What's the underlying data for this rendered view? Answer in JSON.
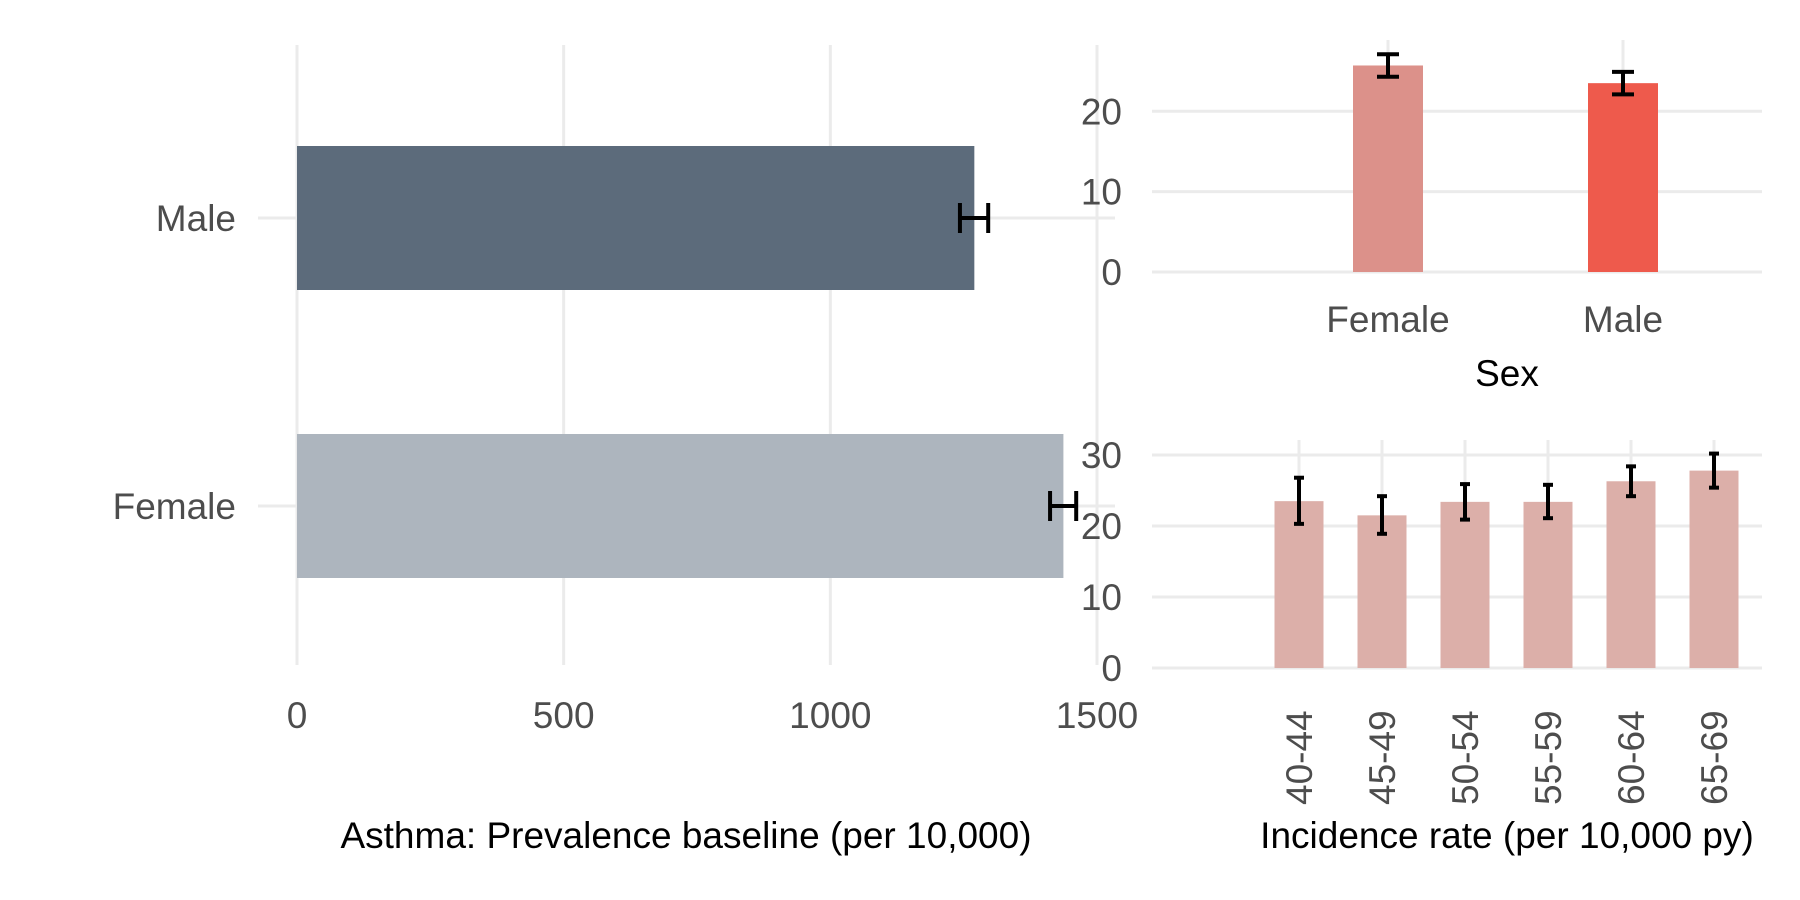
{
  "chart_data": [
    {
      "type": "bar",
      "orientation": "horizontal",
      "categories": [
        "Female",
        "Male"
      ],
      "values": [
        1437,
        1270
      ],
      "error_low": [
        1412,
        1243
      ],
      "error_high": [
        1461,
        1296
      ],
      "colors": [
        "#adb5be",
        "#5c6b7b"
      ],
      "xlabel": "Asthma: Prevalence baseline (per 10,000)",
      "xlim": [
        0,
        1500
      ],
      "x_ticks": [
        "0",
        "500",
        "1000",
        "1500"
      ],
      "x_tick_values": [
        0,
        500,
        1000,
        1500
      ],
      "grid": true
    },
    {
      "type": "bar",
      "categories": [
        "Female",
        "Male"
      ],
      "values": [
        25.7,
        23.5
      ],
      "error_low": [
        24.3,
        22.1
      ],
      "error_high": [
        27.1,
        24.9
      ],
      "colors": [
        "#dc918a",
        "#ee5a4c"
      ],
      "xlabel": "Sex",
      "ylim": [
        0,
        28
      ],
      "y_ticks": [
        "0",
        "10",
        "20"
      ],
      "y_tick_values": [
        0,
        10,
        20
      ],
      "grid": true
    },
    {
      "type": "bar",
      "categories": [
        "40-44",
        "45-49",
        "50-54",
        "55-59",
        "60-64",
        "65-69"
      ],
      "values": [
        23.5,
        21.5,
        23.4,
        23.4,
        26.3,
        27.8
      ],
      "error_low": [
        20.3,
        18.9,
        20.9,
        21.1,
        24.2,
        25.4
      ],
      "error_high": [
        26.8,
        24.2,
        25.9,
        25.8,
        28.4,
        30.2
      ],
      "colors": [
        "#dcafa9"
      ],
      "xlabel": "Incidence rate (per 10,000 py)",
      "ylim": [
        0,
        31
      ],
      "y_ticks": [
        "0",
        "10",
        "20",
        "30"
      ],
      "y_tick_values": [
        0,
        10,
        20,
        30
      ],
      "grid": true
    }
  ]
}
